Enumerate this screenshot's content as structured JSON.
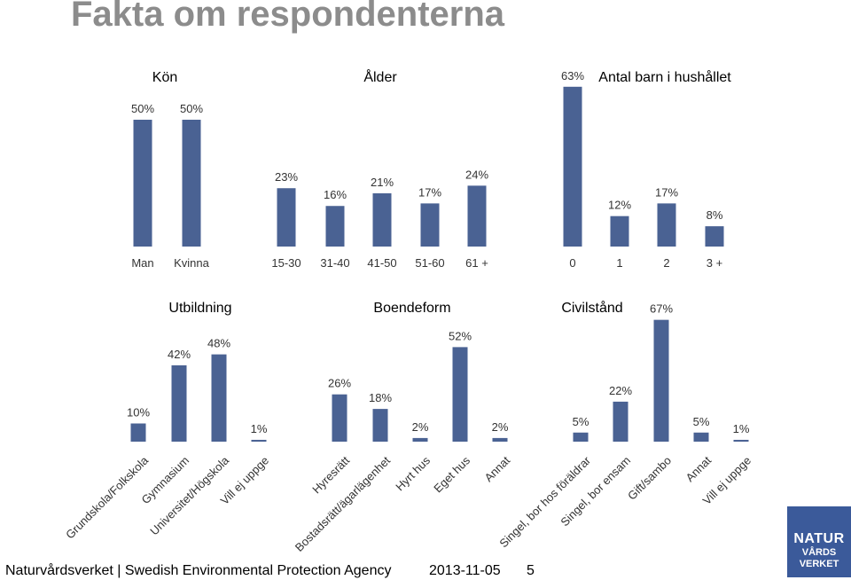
{
  "title": "Fakta om respondenterna",
  "footer": {
    "org": "Naturvårdsverket | Swedish Environmental Protection Agency",
    "date": "2013-11-05",
    "page": "5"
  },
  "logo": {
    "line1": "NATUR",
    "line2": "VÅRDS",
    "line3": "VERKET"
  },
  "colors": {
    "bar": "#4a6293",
    "text": "#333333",
    "title": "#8c8c8c"
  },
  "chart_data": [
    {
      "type": "bar",
      "title": "Kön",
      "categories": [
        "Man",
        "Kvinna"
      ],
      "values": [
        50,
        50
      ],
      "labels": [
        "50%",
        "50%"
      ]
    },
    {
      "type": "bar",
      "title": "Ålder",
      "categories": [
        "15-30",
        "31-40",
        "41-50",
        "51-60",
        "61 +"
      ],
      "values": [
        23,
        16,
        21,
        17,
        24
      ],
      "labels": [
        "23%",
        "16%",
        "21%",
        "17%",
        "24%"
      ]
    },
    {
      "type": "bar",
      "title": "Antal barn i hushållet",
      "categories": [
        "0",
        "1",
        "2",
        "3 +"
      ],
      "values": [
        63,
        12,
        17,
        8
      ],
      "labels": [
        "63%",
        "12%",
        "17%",
        "8%"
      ]
    },
    {
      "type": "bar",
      "title": "Utbildning",
      "categories": [
        "Grundskola/Folkskola",
        "Gymnasium",
        "Universitet/Högskola",
        "Vill ej uppge"
      ],
      "values": [
        10,
        42,
        48,
        1
      ],
      "labels": [
        "10%",
        "42%",
        "48%",
        "1%"
      ]
    },
    {
      "type": "bar",
      "title": "Boendeform",
      "categories": [
        "Hyresrätt",
        "Bostadsrätt/ägarlägenhet",
        "Hyrt hus",
        "Eget hus",
        "Annat"
      ],
      "values": [
        26,
        18,
        2,
        52,
        2
      ],
      "labels": [
        "26%",
        "18%",
        "2%",
        "52%",
        "2%"
      ]
    },
    {
      "type": "bar",
      "title": "Civilstånd",
      "categories": [
        "Singel, bor hos föräldrar",
        "Singel, bor ensam",
        "Gift/sambo",
        "Annat",
        "Vill ej uppge"
      ],
      "values": [
        5,
        22,
        67,
        5,
        1
      ],
      "labels": [
        "5%",
        "22%",
        "67%",
        "5%",
        "1%"
      ]
    }
  ]
}
